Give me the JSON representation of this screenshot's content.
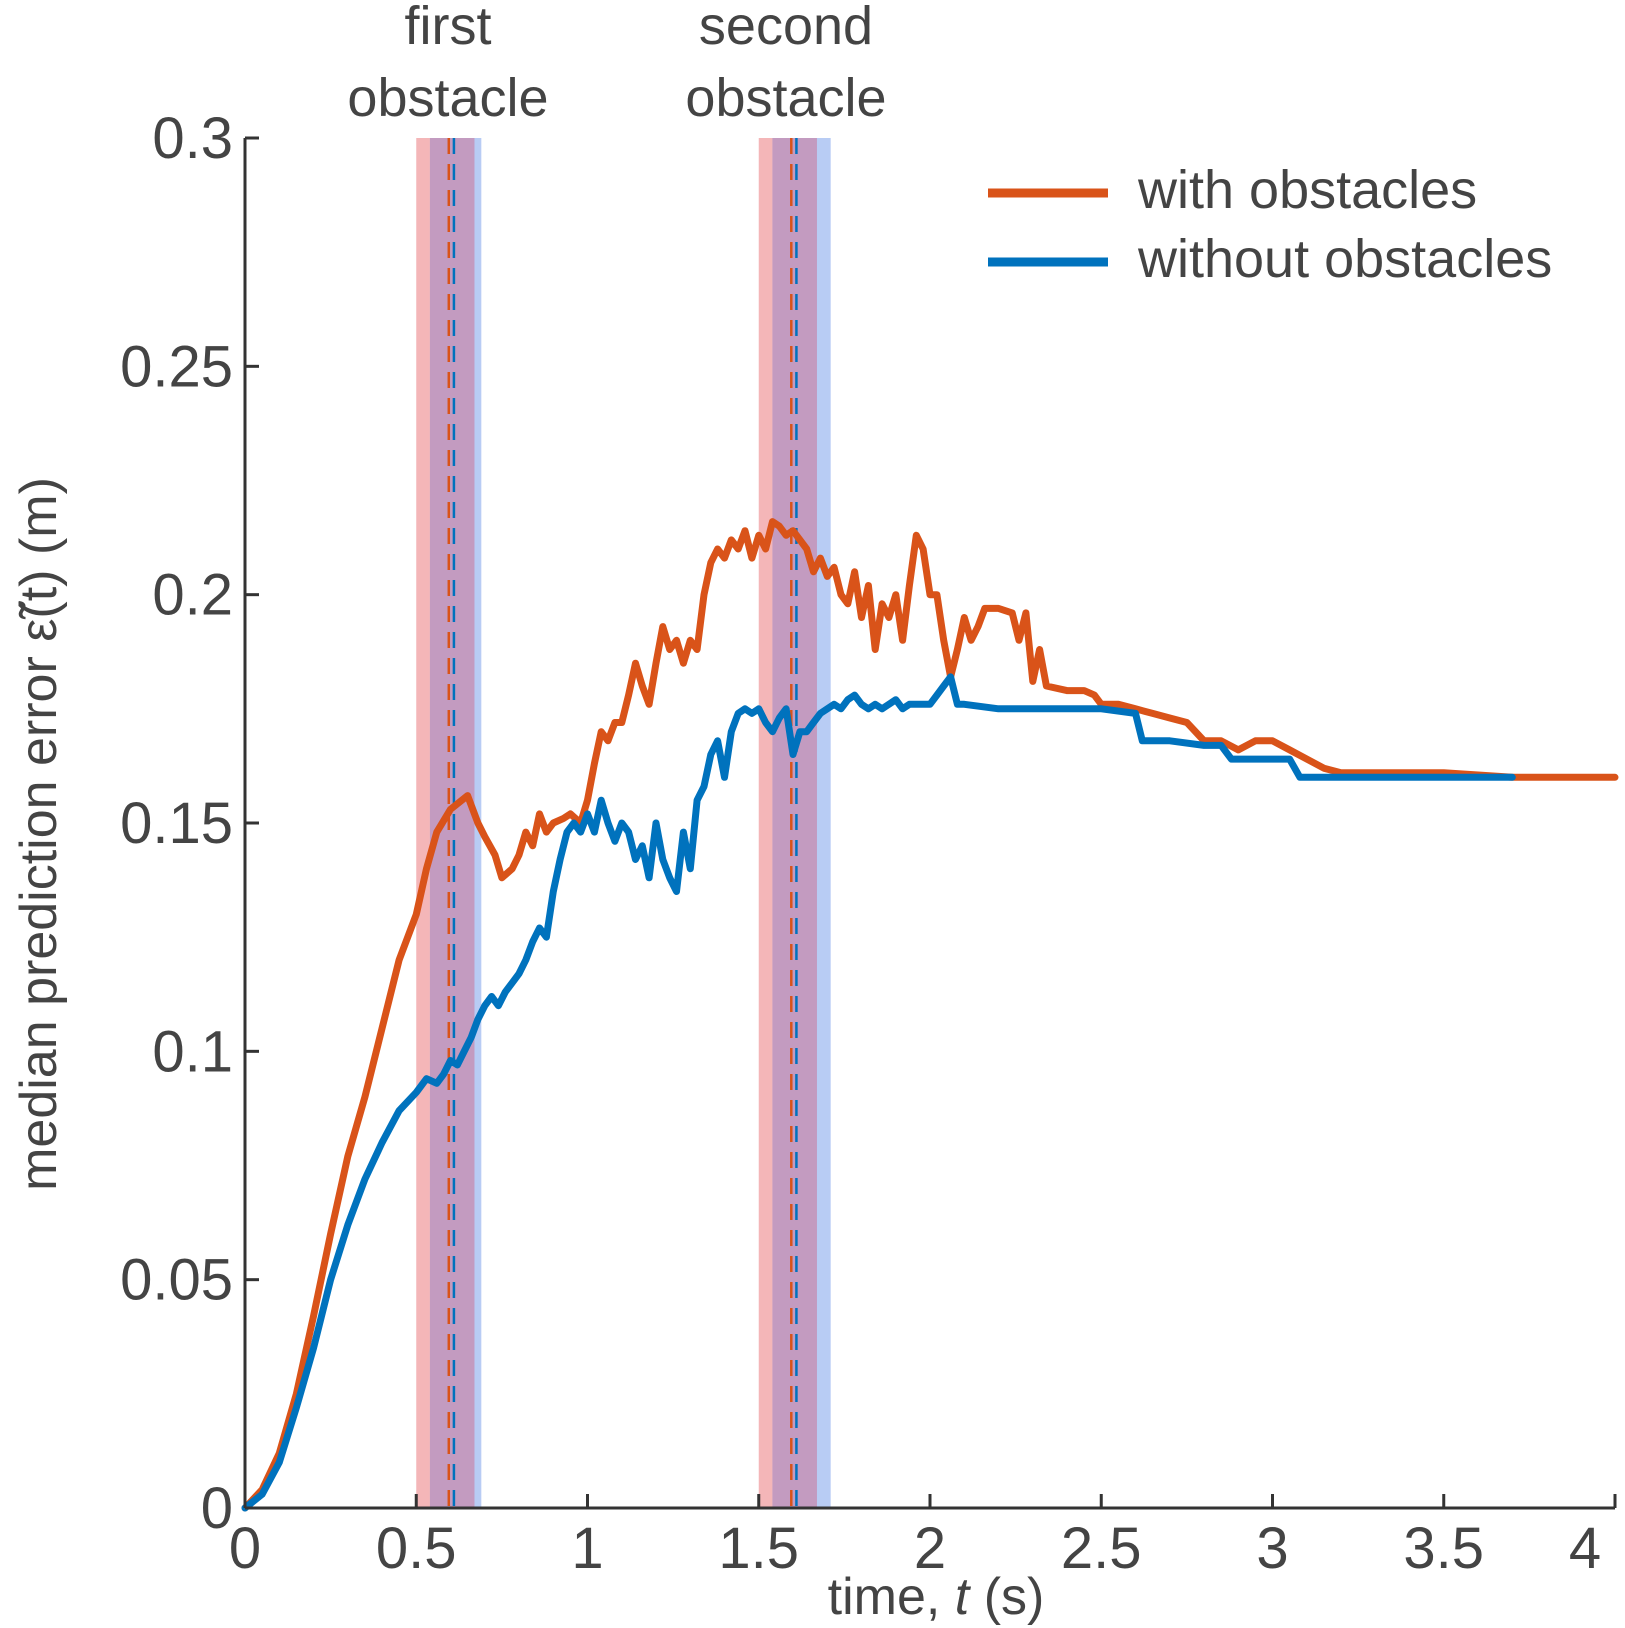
{
  "chart_data": {
    "type": "line",
    "xlabel_prefix": "time, ",
    "xlabel_var": "t",
    "xlabel_suffix": " (s)",
    "ylabel_prefix": "median prediction error ",
    "ylabel_var": "ε̃(t)",
    "ylabel_suffix": " (m)",
    "xlim": [
      0,
      4
    ],
    "ylim": [
      0,
      0.3
    ],
    "xticks": [
      0,
      0.5,
      1,
      1.5,
      2,
      2.5,
      3,
      3.5,
      4
    ],
    "xtick_labels": [
      "0",
      "0.5",
      "1",
      "1.5",
      "2",
      "2.5",
      "3",
      "3.5",
      "4"
    ],
    "yticks": [
      0,
      0.05,
      0.1,
      0.15,
      0.2,
      0.25,
      0.3
    ],
    "ytick_labels": [
      "0",
      "0.05",
      "0.1",
      "0.15",
      "0.2",
      "0.25",
      "0.3"
    ],
    "grid": false,
    "legend_position": "top-right",
    "colors": {
      "with": "#d95319",
      "without": "#0072bd",
      "band_with": "#f4b6b8",
      "band_without": "#b8ccf4",
      "band_overlap": "#c39bc0",
      "axis": "#333333"
    },
    "annotations": [
      {
        "lines": [
          "first",
          "obstacle"
        ],
        "x": 0.6
      },
      {
        "lines": [
          "second",
          "obstacle"
        ],
        "x": 1.6
      }
    ],
    "obstacle_bands": [
      {
        "name": "first obstacle",
        "with": [
          0.5,
          0.67
        ],
        "without": [
          0.54,
          0.69
        ],
        "line_with": 0.595,
        "line_without": 0.61
      },
      {
        "name": "second obstacle",
        "with": [
          1.5,
          1.67
        ],
        "without": [
          1.54,
          1.71
        ],
        "line_with": 1.595,
        "line_without": 1.61
      }
    ],
    "series": [
      {
        "name": "with obstacles",
        "color_key": "with",
        "points": [
          [
            0,
            0
          ],
          [
            0.05,
            0.004
          ],
          [
            0.1,
            0.012
          ],
          [
            0.15,
            0.025
          ],
          [
            0.2,
            0.042
          ],
          [
            0.25,
            0.06
          ],
          [
            0.3,
            0.077
          ],
          [
            0.35,
            0.09
          ],
          [
            0.4,
            0.105
          ],
          [
            0.45,
            0.12
          ],
          [
            0.5,
            0.13
          ],
          [
            0.53,
            0.14
          ],
          [
            0.56,
            0.148
          ],
          [
            0.6,
            0.153
          ],
          [
            0.65,
            0.156
          ],
          [
            0.68,
            0.15
          ],
          [
            0.7,
            0.147
          ],
          [
            0.73,
            0.143
          ],
          [
            0.75,
            0.138
          ],
          [
            0.78,
            0.14
          ],
          [
            0.8,
            0.143
          ],
          [
            0.82,
            0.148
          ],
          [
            0.84,
            0.145
          ],
          [
            0.86,
            0.152
          ],
          [
            0.88,
            0.148
          ],
          [
            0.9,
            0.15
          ],
          [
            0.93,
            0.151
          ],
          [
            0.95,
            0.152
          ],
          [
            0.98,
            0.15
          ],
          [
            1.0,
            0.155
          ],
          [
            1.02,
            0.163
          ],
          [
            1.04,
            0.17
          ],
          [
            1.06,
            0.168
          ],
          [
            1.08,
            0.172
          ],
          [
            1.1,
            0.172
          ],
          [
            1.12,
            0.178
          ],
          [
            1.14,
            0.185
          ],
          [
            1.16,
            0.18
          ],
          [
            1.18,
            0.176
          ],
          [
            1.2,
            0.185
          ],
          [
            1.22,
            0.193
          ],
          [
            1.24,
            0.188
          ],
          [
            1.26,
            0.19
          ],
          [
            1.28,
            0.185
          ],
          [
            1.3,
            0.19
          ],
          [
            1.32,
            0.188
          ],
          [
            1.34,
            0.2
          ],
          [
            1.36,
            0.207
          ],
          [
            1.38,
            0.21
          ],
          [
            1.4,
            0.208
          ],
          [
            1.42,
            0.212
          ],
          [
            1.44,
            0.21
          ],
          [
            1.46,
            0.214
          ],
          [
            1.48,
            0.208
          ],
          [
            1.5,
            0.213
          ],
          [
            1.52,
            0.21
          ],
          [
            1.54,
            0.216
          ],
          [
            1.56,
            0.215
          ],
          [
            1.58,
            0.213
          ],
          [
            1.6,
            0.214
          ],
          [
            1.62,
            0.212
          ],
          [
            1.64,
            0.21
          ],
          [
            1.66,
            0.205
          ],
          [
            1.68,
            0.208
          ],
          [
            1.7,
            0.204
          ],
          [
            1.72,
            0.206
          ],
          [
            1.74,
            0.2
          ],
          [
            1.76,
            0.198
          ],
          [
            1.78,
            0.205
          ],
          [
            1.8,
            0.195
          ],
          [
            1.82,
            0.202
          ],
          [
            1.84,
            0.188
          ],
          [
            1.86,
            0.198
          ],
          [
            1.88,
            0.195
          ],
          [
            1.9,
            0.2
          ],
          [
            1.92,
            0.19
          ],
          [
            1.94,
            0.202
          ],
          [
            1.96,
            0.213
          ],
          [
            1.98,
            0.21
          ],
          [
            2.0,
            0.2
          ],
          [
            2.02,
            0.2
          ],
          [
            2.04,
            0.19
          ],
          [
            2.06,
            0.182
          ],
          [
            2.08,
            0.188
          ],
          [
            2.1,
            0.195
          ],
          [
            2.12,
            0.19
          ],
          [
            2.14,
            0.193
          ],
          [
            2.16,
            0.197
          ],
          [
            2.2,
            0.197
          ],
          [
            2.24,
            0.196
          ],
          [
            2.26,
            0.19
          ],
          [
            2.28,
            0.196
          ],
          [
            2.3,
            0.181
          ],
          [
            2.32,
            0.188
          ],
          [
            2.34,
            0.18
          ],
          [
            2.4,
            0.179
          ],
          [
            2.45,
            0.179
          ],
          [
            2.48,
            0.178
          ],
          [
            2.5,
            0.176
          ],
          [
            2.55,
            0.176
          ],
          [
            2.6,
            0.175
          ],
          [
            2.65,
            0.174
          ],
          [
            2.7,
            0.173
          ],
          [
            2.75,
            0.172
          ],
          [
            2.8,
            0.168
          ],
          [
            2.85,
            0.168
          ],
          [
            2.9,
            0.166
          ],
          [
            2.95,
            0.168
          ],
          [
            3.0,
            0.168
          ],
          [
            3.05,
            0.166
          ],
          [
            3.1,
            0.164
          ],
          [
            3.15,
            0.162
          ],
          [
            3.2,
            0.161
          ],
          [
            3.3,
            0.161
          ],
          [
            3.5,
            0.161
          ],
          [
            3.7,
            0.16
          ],
          [
            4.0,
            0.16
          ]
        ]
      },
      {
        "name": "without obstacles",
        "color_key": "without",
        "points": [
          [
            0,
            0
          ],
          [
            0.05,
            0.003
          ],
          [
            0.1,
            0.01
          ],
          [
            0.15,
            0.022
          ],
          [
            0.2,
            0.035
          ],
          [
            0.25,
            0.05
          ],
          [
            0.3,
            0.062
          ],
          [
            0.35,
            0.072
          ],
          [
            0.4,
            0.08
          ],
          [
            0.45,
            0.087
          ],
          [
            0.5,
            0.091
          ],
          [
            0.53,
            0.094
          ],
          [
            0.56,
            0.093
          ],
          [
            0.58,
            0.095
          ],
          [
            0.6,
            0.098
          ],
          [
            0.62,
            0.097
          ],
          [
            0.64,
            0.1
          ],
          [
            0.66,
            0.103
          ],
          [
            0.68,
            0.107
          ],
          [
            0.7,
            0.11
          ],
          [
            0.72,
            0.112
          ],
          [
            0.74,
            0.11
          ],
          [
            0.76,
            0.113
          ],
          [
            0.78,
            0.115
          ],
          [
            0.8,
            0.117
          ],
          [
            0.82,
            0.12
          ],
          [
            0.84,
            0.124
          ],
          [
            0.86,
            0.127
          ],
          [
            0.88,
            0.125
          ],
          [
            0.9,
            0.135
          ],
          [
            0.92,
            0.142
          ],
          [
            0.94,
            0.148
          ],
          [
            0.96,
            0.15
          ],
          [
            0.98,
            0.148
          ],
          [
            1.0,
            0.152
          ],
          [
            1.02,
            0.148
          ],
          [
            1.04,
            0.155
          ],
          [
            1.06,
            0.15
          ],
          [
            1.08,
            0.146
          ],
          [
            1.1,
            0.15
          ],
          [
            1.12,
            0.148
          ],
          [
            1.14,
            0.142
          ],
          [
            1.16,
            0.145
          ],
          [
            1.18,
            0.138
          ],
          [
            1.2,
            0.15
          ],
          [
            1.22,
            0.142
          ],
          [
            1.24,
            0.138
          ],
          [
            1.26,
            0.135
          ],
          [
            1.28,
            0.148
          ],
          [
            1.3,
            0.14
          ],
          [
            1.32,
            0.155
          ],
          [
            1.34,
            0.158
          ],
          [
            1.36,
            0.165
          ],
          [
            1.38,
            0.168
          ],
          [
            1.4,
            0.16
          ],
          [
            1.42,
            0.17
          ],
          [
            1.44,
            0.174
          ],
          [
            1.46,
            0.175
          ],
          [
            1.48,
            0.174
          ],
          [
            1.5,
            0.175
          ],
          [
            1.52,
            0.172
          ],
          [
            1.54,
            0.17
          ],
          [
            1.56,
            0.173
          ],
          [
            1.58,
            0.175
          ],
          [
            1.6,
            0.165
          ],
          [
            1.62,
            0.17
          ],
          [
            1.64,
            0.17
          ],
          [
            1.66,
            0.172
          ],
          [
            1.68,
            0.174
          ],
          [
            1.7,
            0.175
          ],
          [
            1.72,
            0.176
          ],
          [
            1.74,
            0.175
          ],
          [
            1.76,
            0.177
          ],
          [
            1.78,
            0.178
          ],
          [
            1.8,
            0.176
          ],
          [
            1.82,
            0.175
          ],
          [
            1.84,
            0.176
          ],
          [
            1.86,
            0.175
          ],
          [
            1.88,
            0.176
          ],
          [
            1.9,
            0.177
          ],
          [
            1.92,
            0.175
          ],
          [
            1.94,
            0.176
          ],
          [
            1.96,
            0.176
          ],
          [
            1.98,
            0.176
          ],
          [
            2.0,
            0.176
          ],
          [
            2.02,
            0.178
          ],
          [
            2.04,
            0.18
          ],
          [
            2.06,
            0.182
          ],
          [
            2.08,
            0.176
          ],
          [
            2.1,
            0.176
          ],
          [
            2.2,
            0.175
          ],
          [
            2.3,
            0.175
          ],
          [
            2.4,
            0.175
          ],
          [
            2.5,
            0.175
          ],
          [
            2.6,
            0.174
          ],
          [
            2.62,
            0.168
          ],
          [
            2.7,
            0.168
          ],
          [
            2.8,
            0.167
          ],
          [
            2.85,
            0.167
          ],
          [
            2.88,
            0.164
          ],
          [
            2.9,
            0.164
          ],
          [
            3.0,
            0.164
          ],
          [
            3.05,
            0.164
          ],
          [
            3.08,
            0.16
          ],
          [
            3.2,
            0.16
          ],
          [
            3.5,
            0.16
          ],
          [
            3.7,
            0.16
          ]
        ]
      }
    ]
  }
}
